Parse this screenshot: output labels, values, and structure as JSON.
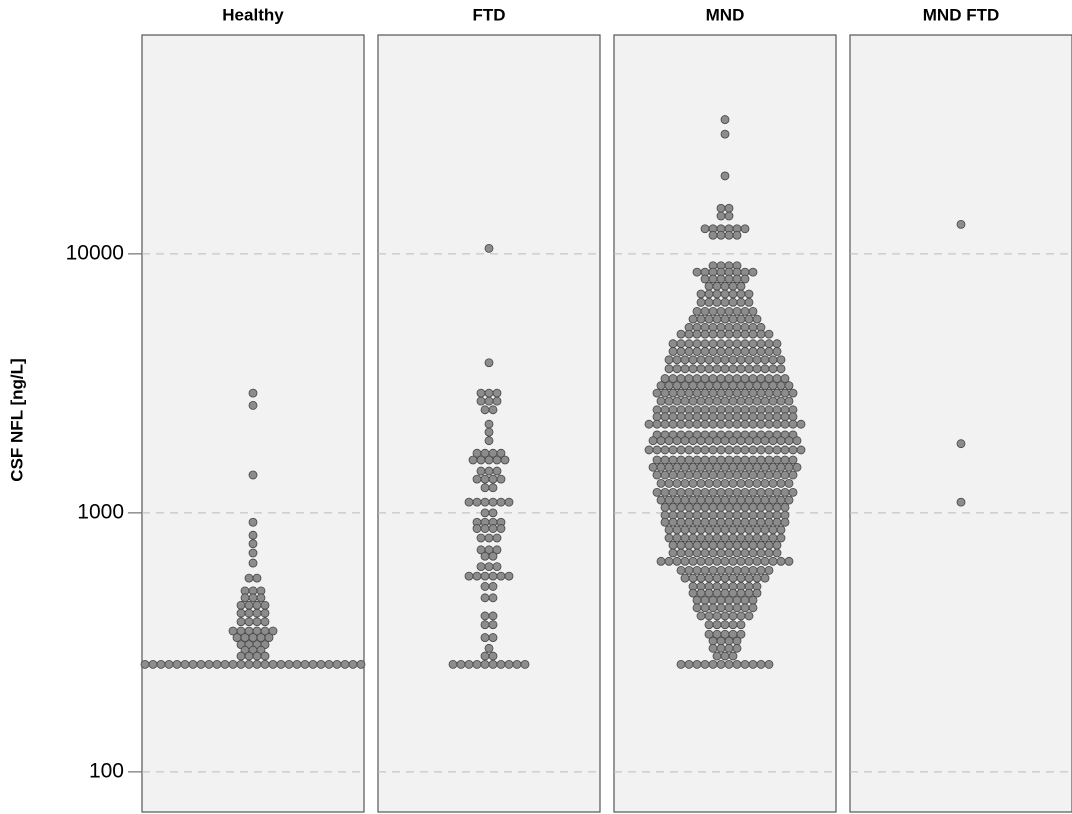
{
  "chart_data": {
    "type": "dotplot",
    "y_label": "CSF NFL [ng/L]",
    "log_scale": true,
    "grid": true,
    "ylim": [
      70,
      70000
    ],
    "yticks": [
      100,
      1000,
      10000
    ],
    "dot_color": "#8c8c8c",
    "series": [
      {
        "name": "Healthy",
        "values": [
          2900,
          2600,
          1400,
          920,
          820,
          760,
          700,
          640,
          560,
          500,
          470,
          440,
          410,
          380,
          350,
          330,
          310,
          295,
          280,
          260
        ],
        "counts": [
          1,
          1,
          1,
          1,
          1,
          1,
          1,
          1,
          2,
          3,
          3,
          4,
          4,
          4,
          6,
          5,
          4,
          3,
          4,
          28
        ]
      },
      {
        "name": "FTD",
        "values": [
          10500,
          3800,
          2900,
          2700,
          2500,
          2200,
          2050,
          1900,
          1700,
          1600,
          1450,
          1350,
          1250,
          1100,
          1000,
          920,
          870,
          800,
          720,
          680,
          620,
          570,
          520,
          470,
          400,
          370,
          330,
          300,
          280,
          260
        ],
        "counts": [
          1,
          1,
          3,
          3,
          2,
          1,
          1,
          1,
          4,
          5,
          3,
          4,
          2,
          6,
          2,
          4,
          4,
          3,
          3,
          2,
          3,
          6,
          2,
          2,
          2,
          2,
          2,
          1,
          2,
          10
        ]
      },
      {
        "name": "MND",
        "values": [
          33000,
          29000,
          20000,
          15000,
          14000,
          12500,
          11800,
          9000,
          8500,
          8000,
          7500,
          7000,
          6500,
          6000,
          5600,
          5200,
          4900,
          4500,
          4200,
          3900,
          3600,
          3300,
          3100,
          2900,
          2700,
          2500,
          2350,
          2200,
          2000,
          1900,
          1750,
          1600,
          1500,
          1400,
          1300,
          1200,
          1120,
          1050,
          980,
          920,
          860,
          800,
          750,
          700,
          650,
          600,
          560,
          520,
          490,
          460,
          430,
          400,
          370,
          340,
          320,
          300,
          280,
          260
        ],
        "counts": [
          1,
          1,
          1,
          2,
          2,
          6,
          4,
          4,
          8,
          6,
          5,
          7,
          7,
          8,
          9,
          10,
          12,
          14,
          14,
          15,
          15,
          16,
          17,
          18,
          17,
          18,
          18,
          20,
          18,
          19,
          20,
          18,
          19,
          18,
          17,
          18,
          17,
          16,
          16,
          16,
          15,
          15,
          14,
          14,
          17,
          12,
          11,
          9,
          9,
          8,
          8,
          7,
          5,
          5,
          4,
          4,
          3,
          12
        ]
      },
      {
        "name": "MND FTD",
        "values": [
          13000,
          1850,
          1100
        ],
        "counts": [
          1,
          1,
          1
        ]
      }
    ]
  }
}
